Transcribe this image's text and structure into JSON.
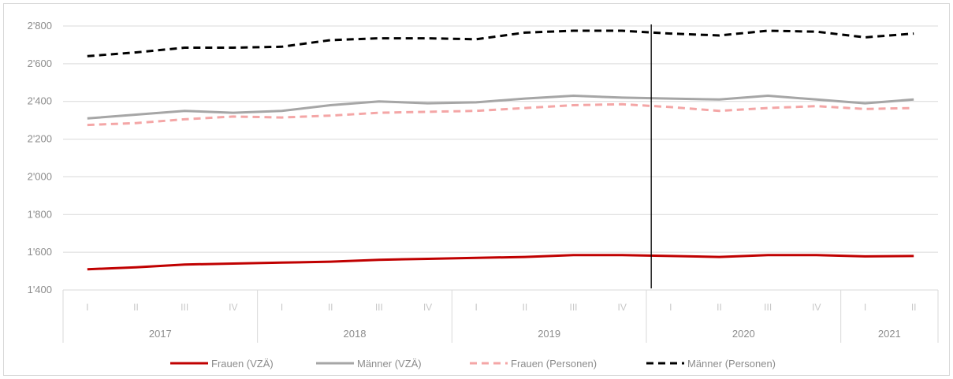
{
  "chart_data": {
    "type": "line",
    "quarters": [
      "I",
      "II",
      "III",
      "IV",
      "I",
      "II",
      "III",
      "IV",
      "I",
      "II",
      "III",
      "IV",
      "I",
      "II",
      "III",
      "IV",
      "I",
      "II"
    ],
    "years": [
      {
        "label": "2017",
        "count": 4
      },
      {
        "label": "2018",
        "count": 4
      },
      {
        "label": "2019",
        "count": 4
      },
      {
        "label": "2020",
        "count": 4
      },
      {
        "label": "2021",
        "count": 2
      }
    ],
    "ylim": [
      1400,
      2800
    ],
    "yticks": [
      1400,
      1600,
      1800,
      2000,
      2200,
      2400,
      2600,
      2800
    ],
    "ytick_labels": [
      "1'400",
      "1'600",
      "1'800",
      "2'000",
      "2'200",
      "2'400",
      "2'600",
      "2'800"
    ],
    "grid": true,
    "legend_position": "bottom",
    "marker_line_after_index": 12,
    "series": [
      {
        "name": "Frauen (VZÄ)",
        "color": "#c00000",
        "style": "solid",
        "values": [
          1510,
          1520,
          1535,
          1540,
          1545,
          1550,
          1560,
          1565,
          1570,
          1575,
          1585,
          1585,
          1580,
          1575,
          1585,
          1585,
          1578,
          1580
        ]
      },
      {
        "name": "Männer (VZÄ)",
        "color": "#a6a6a6",
        "style": "solid",
        "values": [
          2310,
          2330,
          2350,
          2340,
          2350,
          2380,
          2400,
          2390,
          2395,
          2415,
          2430,
          2420,
          2415,
          2410,
          2430,
          2410,
          2390,
          2410
        ]
      },
      {
        "name": "Frauen (Personen)",
        "color": "#f4a6a6",
        "style": "dashed",
        "values": [
          2275,
          2285,
          2305,
          2320,
          2315,
          2325,
          2340,
          2345,
          2350,
          2365,
          2380,
          2385,
          2370,
          2350,
          2365,
          2375,
          2360,
          2365
        ]
      },
      {
        "name": "Männer (Personen)",
        "color": "#000000",
        "style": "dashed",
        "values": [
          2640,
          2660,
          2685,
          2685,
          2690,
          2725,
          2735,
          2735,
          2730,
          2765,
          2775,
          2775,
          2760,
          2750,
          2775,
          2770,
          2740,
          2760
        ]
      }
    ]
  }
}
